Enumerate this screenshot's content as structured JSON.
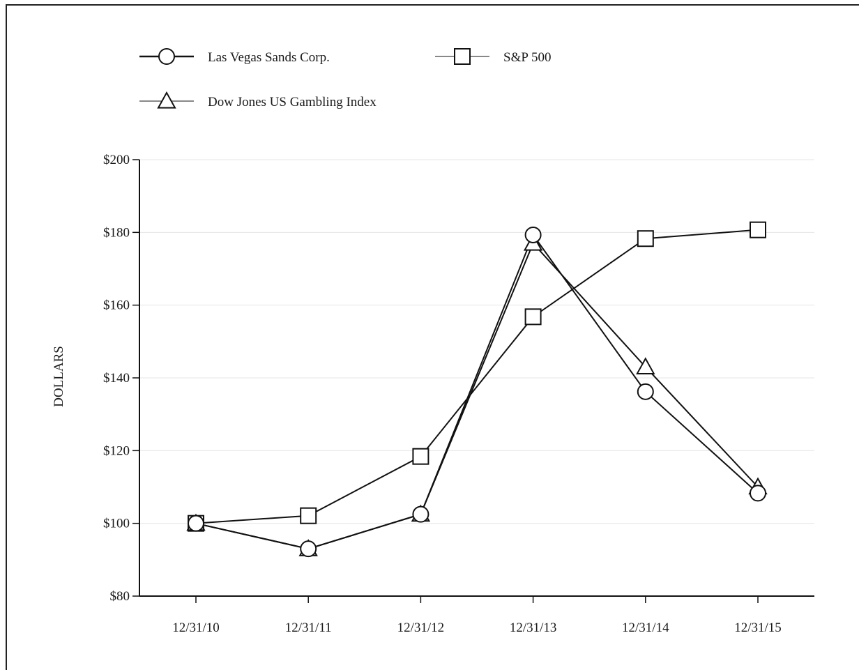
{
  "chart_data": {
    "type": "line",
    "title": "",
    "xlabel": "",
    "ylabel": "DOLLARS",
    "categories": [
      "12/31/10",
      "12/31/11",
      "12/31/12",
      "12/31/13",
      "12/31/14",
      "12/31/15"
    ],
    "ylim": [
      80,
      200
    ],
    "yticks": [
      80,
      100,
      120,
      140,
      160,
      180,
      200
    ],
    "ytick_labels": [
      "$80",
      "$100",
      "$120",
      "$140",
      "$160",
      "$180",
      "$200"
    ],
    "grid": true,
    "legend_position": "top-left",
    "series": [
      {
        "name": "Las Vegas Sands Corp.",
        "marker": "circle",
        "values": [
          100,
          93,
          102.5,
          179.3,
          136.2,
          108.3
        ]
      },
      {
        "name": "S&P 500",
        "marker": "square",
        "values": [
          100,
          102.1,
          118.4,
          156.8,
          178.3,
          180.7
        ]
      },
      {
        "name": "Dow Jones US Gambling Index",
        "marker": "triangle",
        "values": [
          100,
          93,
          102.5,
          177,
          143,
          110
        ]
      }
    ],
    "colors": {
      "line": "#111111",
      "grid": "#e6e6e6",
      "axis": "#111111"
    }
  }
}
